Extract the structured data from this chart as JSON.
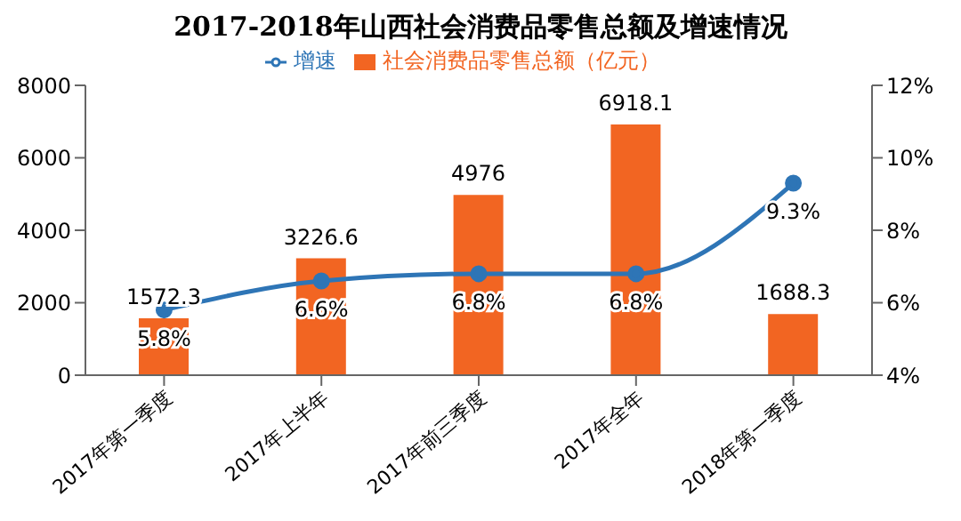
{
  "chart_data": {
    "type": "bar",
    "title": "2017-2018年山西社会消费品零售总额及增速情况",
    "categories": [
      "2017年第一季度",
      "2017年上半年",
      "2017年前三季度",
      "2017年全年",
      "2018年第一季度"
    ],
    "series": [
      {
        "name": "社会消费品零售总额（亿元）",
        "color": "#f26522",
        "values": [
          1572.3,
          3226.6,
          4976,
          6918.1,
          1688.3
        ],
        "value_labels": [
          "1572.3",
          "3226.6",
          "4976",
          "6918.1",
          "1688.3"
        ]
      },
      {
        "name": "增速",
        "type": "line",
        "axis": "y2",
        "color": "#2e75b6",
        "values": [
          5.8,
          6.6,
          6.8,
          6.8,
          9.3
        ],
        "value_labels": [
          "5.8%",
          "6.6%",
          "6.8%",
          "6.8%",
          "9.3%"
        ]
      }
    ],
    "ylim": [
      0,
      8000
    ],
    "yticks": [
      0,
      2000,
      4000,
      6000,
      8000
    ],
    "y2lim": [
      4,
      12
    ],
    "y2ticks": [
      {
        "value": 4,
        "label": "4%"
      },
      {
        "value": 6,
        "label": "6%"
      },
      {
        "value": 8,
        "label": "8%"
      },
      {
        "value": 10,
        "label": "10%"
      },
      {
        "value": 12,
        "label": "12%"
      }
    ],
    "marker": "circle",
    "legend": "top"
  }
}
